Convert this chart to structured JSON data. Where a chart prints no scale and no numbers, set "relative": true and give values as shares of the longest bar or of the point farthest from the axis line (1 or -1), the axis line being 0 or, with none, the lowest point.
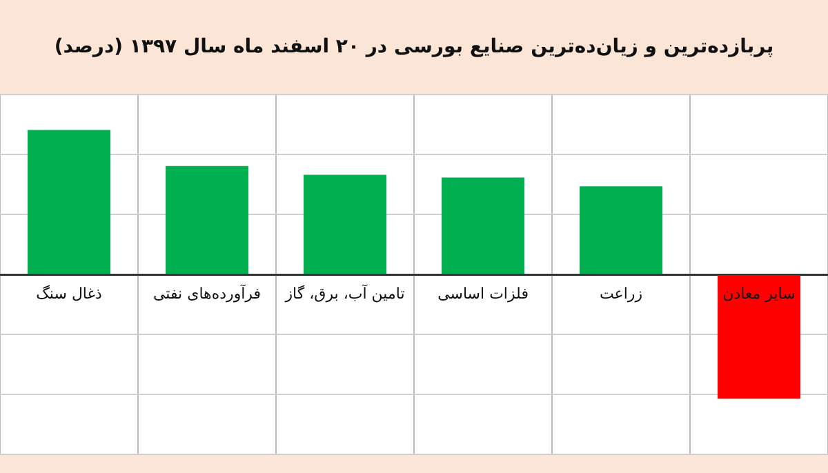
{
  "chart_data": {
    "type": "bar",
    "title": "پربازده‌ترین و زیان‌ده‌ترین صنایع بورسی در ۲۰ اسفند ماه سال ۱۳۹۷ (درصد)",
    "categories": [
      "ذغال سنگ",
      "فرآورده‌های نفتی",
      "تامین آب، برق، گاز",
      "فلزات اساسی",
      "زراعت",
      "سایر معادن"
    ],
    "values": [
      1,
      0.75,
      0.69,
      0.67,
      0.61,
      -0.86
    ],
    "colors": [
      "#00b050",
      "#00b050",
      "#00b050",
      "#00b050",
      "#00b050",
      "#ff0000"
    ],
    "relative": true,
    "grid": true,
    "legend": false
  }
}
